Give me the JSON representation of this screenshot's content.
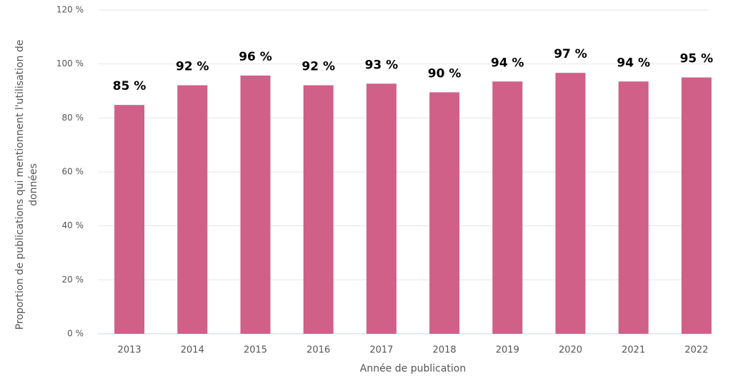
{
  "chart_data": {
    "type": "bar",
    "xlabel": "Année de publication",
    "ylabel": "Proportion de publications qui mentionnent l'utilisation de données",
    "categories": [
      "2013",
      "2014",
      "2015",
      "2016",
      "2017",
      "2018",
      "2019",
      "2020",
      "2021",
      "2022"
    ],
    "values": [
      84.8,
      92.1,
      95.7,
      92.1,
      92.7,
      89.5,
      93.5,
      96.7,
      93.5,
      95.0
    ],
    "value_labels": [
      "85 %",
      "92 %",
      "96 %",
      "92 %",
      "93 %",
      "90 %",
      "94 %",
      "97 %",
      "94 %",
      "95 %"
    ],
    "color": "#d06088",
    "ylim": [
      0,
      120
    ],
    "yticks": [
      {
        "value": 0,
        "label": "0 %"
      },
      {
        "value": 20,
        "label": "20 %"
      },
      {
        "value": 40,
        "label": "40 %"
      },
      {
        "value": 60,
        "label": "60 %"
      },
      {
        "value": 80,
        "label": "80 %"
      },
      {
        "value": 100,
        "label": "100 %"
      },
      {
        "value": 120,
        "label": "120 %"
      }
    ],
    "grid": true
  }
}
